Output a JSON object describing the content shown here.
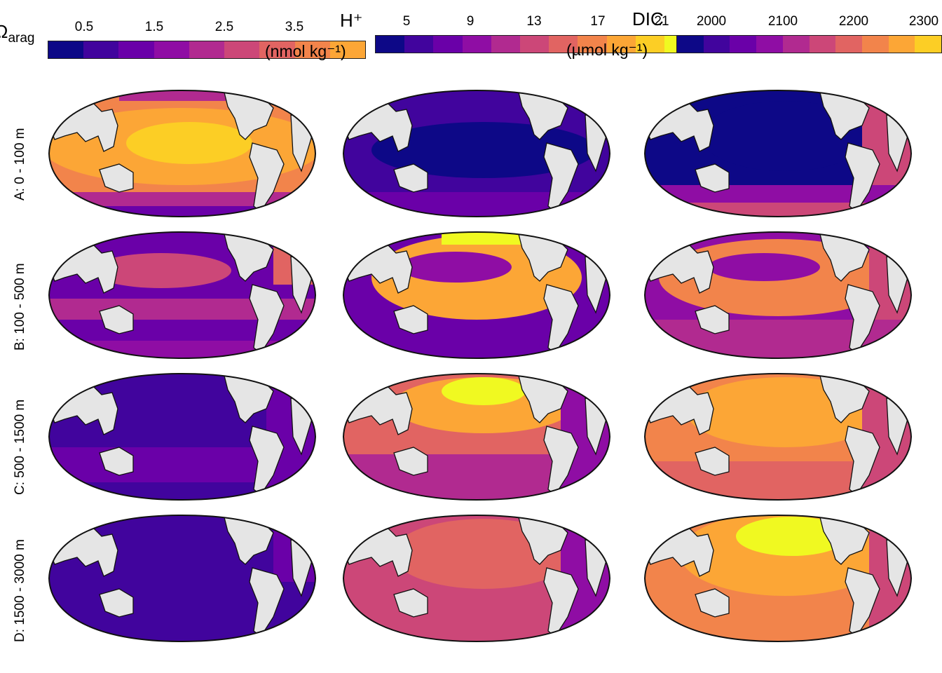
{
  "palette": [
    "#0d0887",
    "#41049d",
    "#6a00a8",
    "#8f0da4",
    "#b12a90",
    "#cc4778",
    "#e16462",
    "#f2844b",
    "#fca636",
    "#fcce25",
    "#f0f921"
  ],
  "land_color": "#e5e5e5",
  "coast_color": "#111111",
  "legends": [
    {
      "title": "Ω",
      "subscript": "arag",
      "unit": "",
      "ticks": [
        "0.5",
        "1.5",
        "2.5",
        "3.5"
      ]
    },
    {
      "title": "H⁺",
      "subscript": "",
      "unit": "(nmol kg⁻¹)",
      "ticks": [
        "5",
        "9",
        "13",
        "17",
        "21"
      ]
    },
    {
      "title": "DIC",
      "subscript": "",
      "unit": "(µmol kg⁻¹)",
      "ticks": [
        "2000",
        "2100",
        "2200",
        "2300"
      ]
    }
  ],
  "rows": [
    {
      "label": "A: 0 - 100 m"
    },
    {
      "label": "B: 100 - 500 m"
    },
    {
      "label": "C: 500 - 1500 m"
    },
    {
      "label": "D: 1500 - 3000 m"
    }
  ],
  "panels": [
    {
      "row": 0,
      "col": 0,
      "base": 7,
      "variant": "arag-surface"
    },
    {
      "row": 0,
      "col": 1,
      "base": 1,
      "variant": "h-surface"
    },
    {
      "row": 0,
      "col": 2,
      "base": 0,
      "variant": "dic-surface"
    },
    {
      "row": 1,
      "col": 0,
      "base": 2,
      "variant": "arag-mid"
    },
    {
      "row": 1,
      "col": 1,
      "base": 2,
      "variant": "h-mid"
    },
    {
      "row": 1,
      "col": 2,
      "base": 3,
      "variant": "dic-mid"
    },
    {
      "row": 2,
      "col": 0,
      "base": 1,
      "variant": "arag-deep"
    },
    {
      "row": 2,
      "col": 1,
      "base": 6,
      "variant": "h-deep"
    },
    {
      "row": 2,
      "col": 2,
      "base": 7,
      "variant": "dic-deep"
    },
    {
      "row": 3,
      "col": 0,
      "base": 1,
      "variant": "arag-abyss"
    },
    {
      "row": 3,
      "col": 1,
      "base": 5,
      "variant": "h-abyss"
    },
    {
      "row": 3,
      "col": 2,
      "base": 7,
      "variant": "dic-abyss"
    }
  ]
}
